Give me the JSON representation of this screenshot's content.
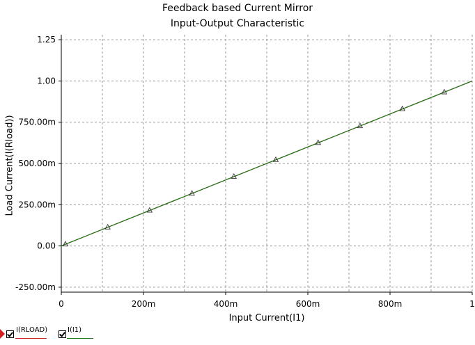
{
  "chart_data": {
    "type": "line",
    "title": "Feedback based Current Mirror",
    "subtitle": "Input-Output Characteristic",
    "xlabel": "Input Current(I1)",
    "ylabel": "Load Current(I(Rload))",
    "xlim": [
      0,
      1
    ],
    "ylim": [
      -0.28,
      1.28
    ],
    "xticks": [
      0,
      0.2,
      0.4,
      0.6,
      0.8,
      1
    ],
    "xtick_labels": [
      "0",
      "200m",
      "400m",
      "600m",
      "800m",
      "1"
    ],
    "xgrid": [
      0.1,
      0.2,
      0.3,
      0.4,
      0.5,
      0.6,
      0.7,
      0.8,
      0.9,
      1
    ],
    "yticks": [
      -0.25,
      0,
      0.25,
      0.5,
      0.75,
      1,
      1.25
    ],
    "ytick_labels": [
      "-250.00m",
      "0.00",
      "250.00m",
      "500.00m",
      "750.00m",
      "1.00",
      "1.25"
    ],
    "grid": true,
    "legend_position": "bottom-left",
    "series": [
      {
        "name": "I(RLOAD)",
        "color": "#d42020",
        "x": [
          0,
          1
        ],
        "values": [
          0,
          1
        ]
      },
      {
        "name": "I(I1)",
        "color": "#1a7a1a",
        "marker": "triangle",
        "x": [
          0,
          1
        ],
        "values": [
          0,
          1
        ],
        "marker_x": [
          0.01,
          0.113,
          0.215,
          0.318,
          0.42,
          0.522,
          0.625,
          0.727,
          0.83,
          0.932
        ],
        "marker_y": [
          0.01,
          0.113,
          0.215,
          0.318,
          0.42,
          0.522,
          0.625,
          0.727,
          0.83,
          0.932
        ]
      }
    ]
  }
}
